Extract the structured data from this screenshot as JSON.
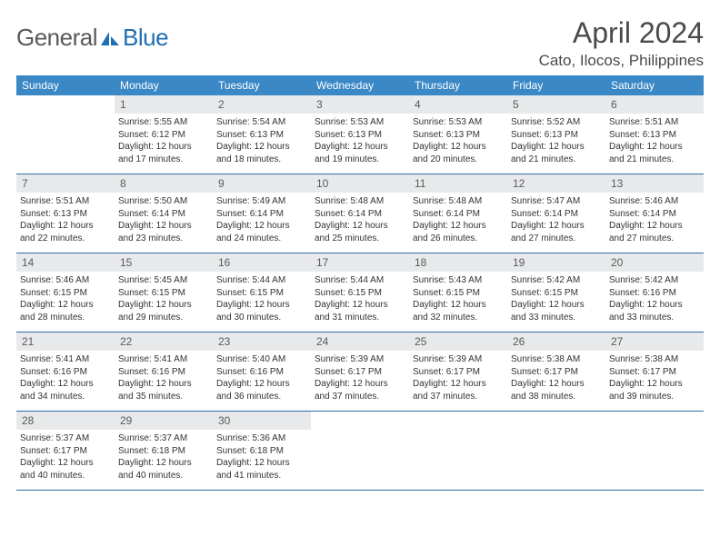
{
  "logo": {
    "general": "General",
    "blue": "Blue"
  },
  "title": {
    "month": "April 2024",
    "location": "Cato, Ilocos, Philippines"
  },
  "colors": {
    "header_bg": "#3a88c6",
    "header_text": "#ffffff",
    "day_band_bg": "#e7e9eb",
    "rule_color": "#2f6ca8",
    "body_text": "#333333",
    "title_text": "#4a4a4a",
    "logo_gray": "#5a5a5a",
    "logo_blue": "#1f6fb2"
  },
  "weekdays": [
    "Sunday",
    "Monday",
    "Tuesday",
    "Wednesday",
    "Thursday",
    "Friday",
    "Saturday"
  ],
  "weeks": [
    [
      {
        "num": "",
        "sunrise": "",
        "sunset": "",
        "daylight": ""
      },
      {
        "num": "1",
        "sunrise": "Sunrise: 5:55 AM",
        "sunset": "Sunset: 6:12 PM",
        "daylight": "Daylight: 12 hours and 17 minutes."
      },
      {
        "num": "2",
        "sunrise": "Sunrise: 5:54 AM",
        "sunset": "Sunset: 6:13 PM",
        "daylight": "Daylight: 12 hours and 18 minutes."
      },
      {
        "num": "3",
        "sunrise": "Sunrise: 5:53 AM",
        "sunset": "Sunset: 6:13 PM",
        "daylight": "Daylight: 12 hours and 19 minutes."
      },
      {
        "num": "4",
        "sunrise": "Sunrise: 5:53 AM",
        "sunset": "Sunset: 6:13 PM",
        "daylight": "Daylight: 12 hours and 20 minutes."
      },
      {
        "num": "5",
        "sunrise": "Sunrise: 5:52 AM",
        "sunset": "Sunset: 6:13 PM",
        "daylight": "Daylight: 12 hours and 21 minutes."
      },
      {
        "num": "6",
        "sunrise": "Sunrise: 5:51 AM",
        "sunset": "Sunset: 6:13 PM",
        "daylight": "Daylight: 12 hours and 21 minutes."
      }
    ],
    [
      {
        "num": "7",
        "sunrise": "Sunrise: 5:51 AM",
        "sunset": "Sunset: 6:13 PM",
        "daylight": "Daylight: 12 hours and 22 minutes."
      },
      {
        "num": "8",
        "sunrise": "Sunrise: 5:50 AM",
        "sunset": "Sunset: 6:14 PM",
        "daylight": "Daylight: 12 hours and 23 minutes."
      },
      {
        "num": "9",
        "sunrise": "Sunrise: 5:49 AM",
        "sunset": "Sunset: 6:14 PM",
        "daylight": "Daylight: 12 hours and 24 minutes."
      },
      {
        "num": "10",
        "sunrise": "Sunrise: 5:48 AM",
        "sunset": "Sunset: 6:14 PM",
        "daylight": "Daylight: 12 hours and 25 minutes."
      },
      {
        "num": "11",
        "sunrise": "Sunrise: 5:48 AM",
        "sunset": "Sunset: 6:14 PM",
        "daylight": "Daylight: 12 hours and 26 minutes."
      },
      {
        "num": "12",
        "sunrise": "Sunrise: 5:47 AM",
        "sunset": "Sunset: 6:14 PM",
        "daylight": "Daylight: 12 hours and 27 minutes."
      },
      {
        "num": "13",
        "sunrise": "Sunrise: 5:46 AM",
        "sunset": "Sunset: 6:14 PM",
        "daylight": "Daylight: 12 hours and 27 minutes."
      }
    ],
    [
      {
        "num": "14",
        "sunrise": "Sunrise: 5:46 AM",
        "sunset": "Sunset: 6:15 PM",
        "daylight": "Daylight: 12 hours and 28 minutes."
      },
      {
        "num": "15",
        "sunrise": "Sunrise: 5:45 AM",
        "sunset": "Sunset: 6:15 PM",
        "daylight": "Daylight: 12 hours and 29 minutes."
      },
      {
        "num": "16",
        "sunrise": "Sunrise: 5:44 AM",
        "sunset": "Sunset: 6:15 PM",
        "daylight": "Daylight: 12 hours and 30 minutes."
      },
      {
        "num": "17",
        "sunrise": "Sunrise: 5:44 AM",
        "sunset": "Sunset: 6:15 PM",
        "daylight": "Daylight: 12 hours and 31 minutes."
      },
      {
        "num": "18",
        "sunrise": "Sunrise: 5:43 AM",
        "sunset": "Sunset: 6:15 PM",
        "daylight": "Daylight: 12 hours and 32 minutes."
      },
      {
        "num": "19",
        "sunrise": "Sunrise: 5:42 AM",
        "sunset": "Sunset: 6:15 PM",
        "daylight": "Daylight: 12 hours and 33 minutes."
      },
      {
        "num": "20",
        "sunrise": "Sunrise: 5:42 AM",
        "sunset": "Sunset: 6:16 PM",
        "daylight": "Daylight: 12 hours and 33 minutes."
      }
    ],
    [
      {
        "num": "21",
        "sunrise": "Sunrise: 5:41 AM",
        "sunset": "Sunset: 6:16 PM",
        "daylight": "Daylight: 12 hours and 34 minutes."
      },
      {
        "num": "22",
        "sunrise": "Sunrise: 5:41 AM",
        "sunset": "Sunset: 6:16 PM",
        "daylight": "Daylight: 12 hours and 35 minutes."
      },
      {
        "num": "23",
        "sunrise": "Sunrise: 5:40 AM",
        "sunset": "Sunset: 6:16 PM",
        "daylight": "Daylight: 12 hours and 36 minutes."
      },
      {
        "num": "24",
        "sunrise": "Sunrise: 5:39 AM",
        "sunset": "Sunset: 6:17 PM",
        "daylight": "Daylight: 12 hours and 37 minutes."
      },
      {
        "num": "25",
        "sunrise": "Sunrise: 5:39 AM",
        "sunset": "Sunset: 6:17 PM",
        "daylight": "Daylight: 12 hours and 37 minutes."
      },
      {
        "num": "26",
        "sunrise": "Sunrise: 5:38 AM",
        "sunset": "Sunset: 6:17 PM",
        "daylight": "Daylight: 12 hours and 38 minutes."
      },
      {
        "num": "27",
        "sunrise": "Sunrise: 5:38 AM",
        "sunset": "Sunset: 6:17 PM",
        "daylight": "Daylight: 12 hours and 39 minutes."
      }
    ],
    [
      {
        "num": "28",
        "sunrise": "Sunrise: 5:37 AM",
        "sunset": "Sunset: 6:17 PM",
        "daylight": "Daylight: 12 hours and 40 minutes."
      },
      {
        "num": "29",
        "sunrise": "Sunrise: 5:37 AM",
        "sunset": "Sunset: 6:18 PM",
        "daylight": "Daylight: 12 hours and 40 minutes."
      },
      {
        "num": "30",
        "sunrise": "Sunrise: 5:36 AM",
        "sunset": "Sunset: 6:18 PM",
        "daylight": "Daylight: 12 hours and 41 minutes."
      },
      {
        "num": "",
        "sunrise": "",
        "sunset": "",
        "daylight": ""
      },
      {
        "num": "",
        "sunrise": "",
        "sunset": "",
        "daylight": ""
      },
      {
        "num": "",
        "sunrise": "",
        "sunset": "",
        "daylight": ""
      },
      {
        "num": "",
        "sunrise": "",
        "sunset": "",
        "daylight": ""
      }
    ]
  ]
}
